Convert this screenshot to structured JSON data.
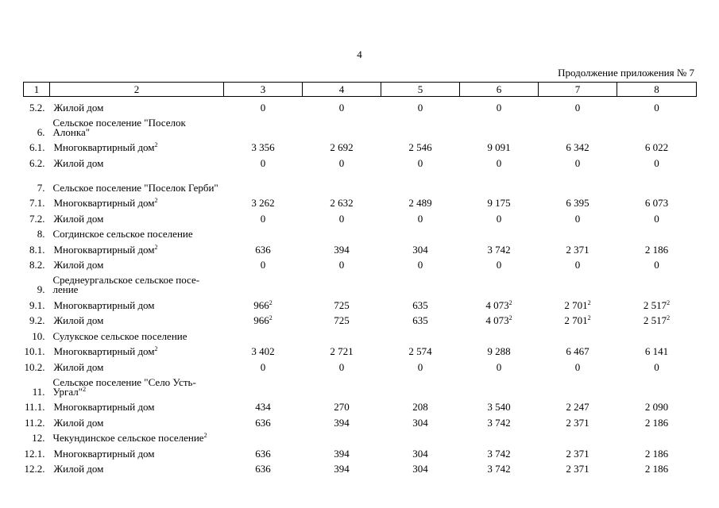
{
  "page_number": "4",
  "continuation": "Продолжение приложения № 7",
  "columns": [
    "1",
    "2",
    "3",
    "4",
    "5",
    "6",
    "7",
    "8"
  ],
  "rows": [
    {
      "type": "data",
      "num": "5.2.",
      "label": "Жилой дом",
      "values": [
        "0",
        "0",
        "0",
        "0",
        "0",
        "0"
      ]
    },
    {
      "type": "section",
      "num": "6.",
      "label": "Сельское поселение \"Поселок Алонка\"",
      "wrap": true
    },
    {
      "type": "data",
      "num": "6.1.",
      "label": "Многоквартирный дом",
      "label_sup": "2",
      "values": [
        "3 356",
        "2 692",
        "2 546",
        "9 091",
        "6 342",
        "6 022"
      ]
    },
    {
      "type": "data",
      "num": "6.2.",
      "label": "Жилой дом",
      "values": [
        "0",
        "0",
        "0",
        "0",
        "0",
        "0"
      ]
    },
    {
      "type": "section",
      "num": "7.",
      "label": "Сельское поселение \"Поселок Герби\"",
      "wrap": true
    },
    {
      "type": "data",
      "num": "7.1.",
      "label": "Многоквартирный дом",
      "label_sup": "2",
      "values": [
        "3 262",
        "2 632",
        "2 489",
        "9 175",
        "6 395",
        "6 073"
      ]
    },
    {
      "type": "data",
      "num": "7.2.",
      "label": "Жилой дом",
      "values": [
        "0",
        "0",
        "0",
        "0",
        "0",
        "0"
      ]
    },
    {
      "type": "section",
      "num": "8.",
      "label": "Согдинское сельское поселение",
      "wrap": false
    },
    {
      "type": "data",
      "num": "8.1.",
      "label": "Многоквартирный дом",
      "label_sup": "2",
      "values": [
        "636",
        "394",
        "304",
        "3 742",
        "2 371",
        "2 186"
      ]
    },
    {
      "type": "data",
      "num": "8.2.",
      "label": "Жилой дом",
      "values": [
        "0",
        "0",
        "0",
        "0",
        "0",
        "0"
      ]
    },
    {
      "type": "section",
      "num": "9.",
      "label": "Среднеургальское сельское посе-ление",
      "wrap": true
    },
    {
      "type": "data",
      "num": "9.1.",
      "label": "Многоквартирный дом",
      "values": [
        "966",
        "725",
        "635",
        "4 073",
        "2 701",
        "2 517"
      ],
      "value_sups": [
        "2",
        "",
        "",
        "2",
        "2",
        "2"
      ]
    },
    {
      "type": "data",
      "num": "9.2.",
      "label": "Жилой дом",
      "values": [
        "966",
        "725",
        "635",
        "4 073",
        "2 701",
        "2 517"
      ],
      "value_sups": [
        "2",
        "",
        "",
        "2",
        "2",
        "2"
      ]
    },
    {
      "type": "section",
      "num": "10.",
      "label": "Сулукское сельское поселение",
      "wrap": false
    },
    {
      "type": "data",
      "num": "10.1.",
      "label": "Многоквартирный дом",
      "label_sup": "2",
      "values": [
        "3 402",
        "2 721",
        "2 574",
        "9 288",
        "6 467",
        "6 141"
      ]
    },
    {
      "type": "data",
      "num": "10.2.",
      "label": "Жилой дом",
      "values": [
        "0",
        "0",
        "0",
        "0",
        "0",
        "0"
      ]
    },
    {
      "type": "section",
      "num": "11.",
      "label": "Сельское поселение \"Село Усть-Ургал\"",
      "label_sup": "2",
      "wrap": true
    },
    {
      "type": "data",
      "num": "11.1.",
      "label": "Многоквартирный дом",
      "values": [
        "434",
        "270",
        "208",
        "3 540",
        "2 247",
        "2 090"
      ]
    },
    {
      "type": "data",
      "num": "11.2.",
      "label": "Жилой дом",
      "values": [
        "636",
        "394",
        "304",
        "3 742",
        "2 371",
        "2 186"
      ]
    },
    {
      "type": "section",
      "num": "12.",
      "label": "Чекундинское сельское поселение",
      "label_sup": "2",
      "wrap": false
    },
    {
      "type": "data",
      "num": "12.1.",
      "label": "Многоквартирный дом",
      "values": [
        "636",
        "394",
        "304",
        "3 742",
        "2 371",
        "2 186"
      ]
    },
    {
      "type": "data",
      "num": "12.2.",
      "label": "Жилой дом",
      "values": [
        "636",
        "394",
        "304",
        "3 742",
        "2 371",
        "2 186"
      ]
    }
  ]
}
